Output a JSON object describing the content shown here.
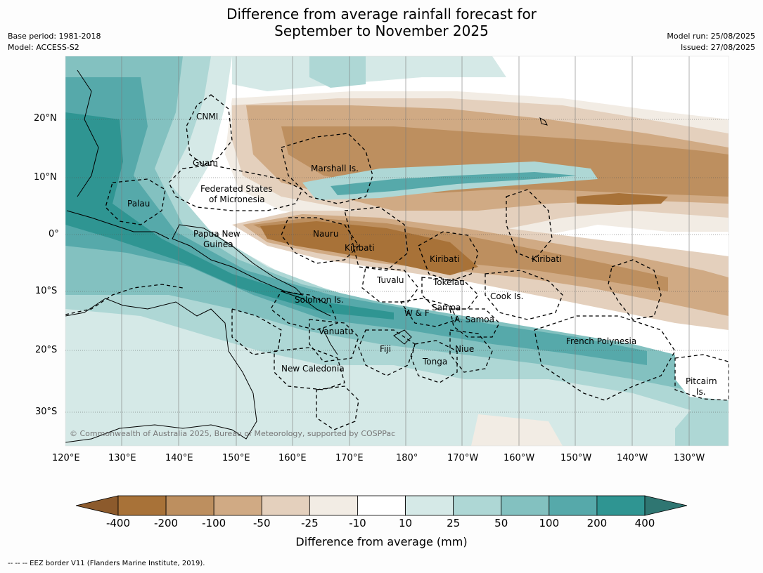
{
  "header": {
    "title_line1": "Difference from average rainfall forecast for",
    "title_line2": "September to November 2025",
    "base_period": "Base period: 1981-2018",
    "model": "Model: ACCESS-S2",
    "model_run": "Model run: 25/08/2025",
    "issued": "Issued: 27/08/2025"
  },
  "map": {
    "lat_labels": [
      "20°N",
      "10°N",
      "0°",
      "10°S",
      "20°S",
      "30°S"
    ],
    "lon_labels": [
      "120°E",
      "130°E",
      "140°E",
      "150°E",
      "160°E",
      "170°E",
      "180°",
      "170°W",
      "160°W",
      "150°W",
      "140°W",
      "130°W"
    ],
    "places": {
      "cnmi": "CNMI",
      "guam": "Guam",
      "marshall": "Marshall Is.",
      "fsm1": "Federated States",
      "fsm2": "of Micronesia",
      "palau": "Palau",
      "png1": "Papua New",
      "png2": "Guinea",
      "nauru": "Nauru",
      "kiribati_w": "Kiribati",
      "kiribati_c": "Kiribati",
      "kiribati_e": "Kiribati",
      "tuvalu": "Tuvalu",
      "tokelau": "Tokelau",
      "cook": "Cook Is.",
      "solomon": "Solomon Is.",
      "wf": "W & F",
      "samoa": "Samoa",
      "asamoa": "A. Samoa",
      "vanuatu": "Vanuatu",
      "fiji": "Fiji",
      "niue": "Niue",
      "tonga": "Tonga",
      "frpoly": "French Polynesia",
      "newcal": "New Caledonia",
      "pitcairn1": "Pitcairn",
      "pitcairn2": "Is."
    },
    "copyright": "© Commonwealth of Australia 2025, Bureau of Meteorology, supported by COSPPac"
  },
  "colorbar": {
    "ticks": [
      "-400",
      "-200",
      "-100",
      "-50",
      "-25",
      "-10",
      "10",
      "25",
      "50",
      "100",
      "200",
      "400"
    ],
    "colors": [
      "#8c5a2c",
      "#a87238",
      "#bd8f5f",
      "#d0aa84",
      "#e4d0bd",
      "#f2ece4",
      "#ffffff",
      "#d5e9e7",
      "#aed7d5",
      "#83c1c0",
      "#56a9aa",
      "#2f9592",
      "#2f7672"
    ],
    "title": "Difference from average (mm)"
  },
  "footer": "--  --  -- EEZ border V11 (Flanders Marine Institute, 2019)."
}
